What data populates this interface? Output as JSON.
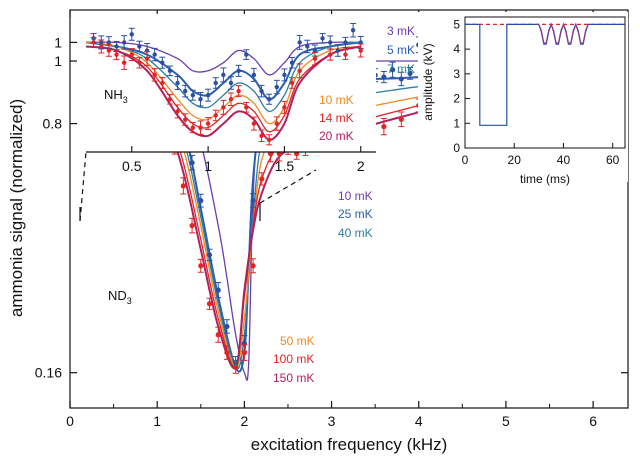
{
  "chart_data": [
    {
      "type": "line",
      "molecule": "ND",
      "molecule_sub": "3",
      "xlabel": "excitation frequency (kHz)",
      "ylabel": "ammonia signal (normalized)",
      "xlim": [
        0,
        6.4
      ],
      "y_scale": "log",
      "ylim": [
        0.13,
        1.35
      ],
      "xticks": [
        0,
        1,
        2,
        3,
        4,
        5,
        6
      ],
      "yticks": [
        0.16,
        1
      ],
      "ytick_labels": [
        "0.16",
        "1"
      ],
      "grid": false,
      "legend_upper": [
        "10 mK",
        "25 mK",
        "40 mK"
      ],
      "legend_lower": [
        "50 mK",
        "100 mK",
        "150 mK"
      ],
      "series": [
        {
          "name": "10 mK",
          "color": "#6a3db0",
          "x": [
            0.3,
            0.5,
            0.7,
            0.9,
            1.1,
            1.3,
            1.5,
            1.7,
            1.8,
            1.9,
            2.0,
            2.05,
            2.1,
            2.2,
            2.4,
            2.7,
            3.0,
            3.5,
            4.0,
            4.5,
            5.0,
            5.5,
            6.0
          ],
          "y": [
            1.0,
            0.98,
            0.96,
            0.98,
            0.95,
            0.85,
            0.62,
            0.38,
            0.28,
            0.2,
            0.16,
            0.17,
            0.45,
            0.92,
            0.99,
            1.0,
            1.0,
            1.0,
            1.0,
            1.0,
            0.99,
            0.99,
            1.0
          ]
        },
        {
          "name": "25 mK",
          "color": "#2a5fb0",
          "x": [
            0.3,
            0.5,
            0.7,
            0.9,
            1.1,
            1.3,
            1.5,
            1.7,
            1.9,
            2.0,
            2.05,
            2.1,
            2.2,
            2.3,
            2.5,
            2.8,
            3.0,
            3.5,
            4.0,
            4.5,
            5.0,
            5.5,
            6.0
          ],
          "y": [
            1.0,
            0.98,
            0.93,
            0.96,
            0.88,
            0.69,
            0.42,
            0.25,
            0.165,
            0.18,
            0.3,
            0.5,
            0.76,
            0.85,
            0.88,
            0.9,
            0.9,
            0.9,
            0.91,
            0.93,
            0.95,
            0.97,
            0.98
          ]
        },
        {
          "name": "40 mK",
          "color": "#2e7ea2",
          "x": [
            0.3,
            0.5,
            0.7,
            0.9,
            1.1,
            1.3,
            1.5,
            1.7,
            1.9,
            2.0,
            2.1,
            2.2,
            2.4,
            2.7,
            3.0,
            3.5,
            4.0,
            4.5,
            5.0,
            5.5,
            6.0
          ],
          "y": [
            1.0,
            0.97,
            0.92,
            0.95,
            0.84,
            0.64,
            0.4,
            0.24,
            0.165,
            0.2,
            0.4,
            0.63,
            0.76,
            0.8,
            0.8,
            0.83,
            0.86,
            0.88,
            0.92,
            0.95,
            0.97
          ]
        },
        {
          "name": "50 mK",
          "color": "#ee8a1e",
          "x": [
            0.3,
            0.5,
            0.7,
            0.9,
            1.1,
            1.3,
            1.5,
            1.7,
            1.9,
            2.0,
            2.1,
            2.2,
            2.4,
            2.7,
            3.0,
            3.5,
            4.0,
            4.5,
            5.0,
            5.5,
            6.0
          ],
          "y": [
            1.0,
            0.96,
            0.9,
            0.93,
            0.8,
            0.6,
            0.38,
            0.23,
            0.165,
            0.22,
            0.38,
            0.56,
            0.68,
            0.72,
            0.73,
            0.77,
            0.81,
            0.85,
            0.89,
            0.92,
            0.95
          ]
        },
        {
          "name": "100 mK",
          "color": "#e02525",
          "x": [
            0.3,
            0.5,
            0.7,
            0.9,
            1.1,
            1.3,
            1.5,
            1.7,
            1.9,
            2.0,
            2.1,
            2.2,
            2.4,
            2.7,
            3.0,
            3.5,
            4.0,
            4.5,
            5.0,
            5.5,
            6.0
          ],
          "y": [
            1.0,
            0.95,
            0.87,
            0.9,
            0.75,
            0.55,
            0.35,
            0.22,
            0.165,
            0.25,
            0.38,
            0.5,
            0.61,
            0.65,
            0.67,
            0.72,
            0.77,
            0.82,
            0.86,
            0.9,
            0.94
          ]
        },
        {
          "name": "150 mK",
          "color": "#b22060",
          "x": [
            0.3,
            0.5,
            0.7,
            0.9,
            1.1,
            1.3,
            1.5,
            1.7,
            1.9,
            2.0,
            2.1,
            2.2,
            2.4,
            2.7,
            3.0,
            3.5,
            4.0,
            4.5,
            5.0,
            5.5,
            6.0
          ],
          "y": [
            1.0,
            0.94,
            0.85,
            0.88,
            0.72,
            0.52,
            0.33,
            0.21,
            0.165,
            0.26,
            0.37,
            0.46,
            0.57,
            0.61,
            0.63,
            0.69,
            0.74,
            0.8,
            0.85,
            0.89,
            0.93
          ]
        },
        {
          "name": "data 10 mK",
          "kind": "points",
          "color": "#2a4fa5",
          "x": [
            0.3,
            0.5,
            0.7,
            0.9,
            1.0,
            1.1,
            1.2,
            1.3,
            1.4,
            1.5,
            1.6,
            1.7,
            1.8,
            1.9,
            2.0,
            2.1,
            2.2,
            2.3,
            2.4,
            2.5,
            2.6,
            2.7,
            2.8,
            2.9,
            3.0,
            3.1,
            3.2,
            3.3,
            3.4,
            3.5,
            3.6,
            3.7,
            3.8,
            3.9,
            4.0,
            4.1,
            4.2,
            4.3,
            4.4,
            4.5,
            4.6,
            4.7,
            4.8,
            4.9,
            5.0,
            5.1,
            5.2,
            5.3,
            5.4,
            5.5,
            5.6,
            5.7,
            5.8,
            5.9,
            6.0
          ],
          "y": [
            1.0,
            1.02,
            1.05,
            1.1,
            0.98,
            0.9,
            0.8,
            0.72,
            0.55,
            0.44,
            0.32,
            0.26,
            0.21,
            0.17,
            0.19,
            0.44,
            0.7,
            0.82,
            0.88,
            0.9,
            0.84,
            0.83,
            0.9,
            0.87,
            0.92,
            0.88,
            0.9,
            0.93,
            0.9,
            0.92,
            0.91,
            0.95,
            0.9,
            0.93,
            1.1,
            0.95,
            0.93,
            0.93,
            0.96,
            0.98,
            0.95,
            0.97,
            0.96,
            0.99,
            0.96,
            0.97,
            0.98,
            0.96,
            0.99,
            0.98,
            0.97,
            0.98,
            0.99,
            1.0,
            1.0
          ]
        },
        {
          "name": "data 150 mK",
          "kind": "points",
          "color": "#e02525",
          "x": [
            0.3,
            0.5,
            0.7,
            0.9,
            1.0,
            1.1,
            1.2,
            1.3,
            1.4,
            1.5,
            1.6,
            1.7,
            1.8,
            1.9,
            2.0,
            2.1,
            2.2,
            2.3,
            2.4,
            2.5,
            2.6,
            2.7,
            2.8,
            2.9,
            3.0,
            3.2,
            3.4,
            3.6,
            3.8,
            4.0,
            4.2,
            4.4,
            4.6,
            4.8,
            5.0,
            5.2,
            5.4,
            5.6,
            5.8,
            6.0
          ],
          "y": [
            0.98,
            0.95,
            0.9,
            0.88,
            0.85,
            0.75,
            0.6,
            0.48,
            0.38,
            0.3,
            0.24,
            0.2,
            0.18,
            0.165,
            0.18,
            0.3,
            0.5,
            0.58,
            0.58,
            0.6,
            0.58,
            0.6,
            0.62,
            0.62,
            0.64,
            0.66,
            0.64,
            0.68,
            0.71,
            0.77,
            0.72,
            0.76,
            0.76,
            0.8,
            0.84,
            0.84,
            0.84,
            0.89,
            0.86,
            0.92
          ]
        }
      ]
    },
    {
      "type": "line",
      "molecule": "NH",
      "molecule_sub": "3",
      "xlim": [
        0.2,
        2.1
      ],
      "ylim": [
        0.73,
        1.07
      ],
      "xticks": [
        0.5,
        1,
        1.5,
        2
      ],
      "xtick_labels": [
        "0.5",
        "1",
        "1.5",
        "2"
      ],
      "yticks": [
        0.8,
        1
      ],
      "ytick_labels": [
        "0.8",
        "1"
      ],
      "legend_upper": [
        "3 mK",
        "5 mK",
        "7 mK"
      ],
      "legend_lower": [
        "10 mK",
        "14 mK",
        "20 mK"
      ],
      "series": [
        {
          "name": "3 mK",
          "color": "#6a3db0",
          "x": [
            0.2,
            0.4,
            0.6,
            0.8,
            0.9,
            1.0,
            1.1,
            1.2,
            1.3,
            1.4,
            1.5,
            1.6,
            1.8,
            2.0
          ],
          "y": [
            1.0,
            1.0,
            0.99,
            0.96,
            0.93,
            0.93,
            0.95,
            0.98,
            0.96,
            0.92,
            0.95,
            0.99,
            1.0,
            1.0
          ]
        },
        {
          "name": "5 mK",
          "color": "#2a5fb0",
          "x": [
            0.2,
            0.4,
            0.6,
            0.8,
            0.9,
            1.0,
            1.1,
            1.2,
            1.3,
            1.4,
            1.5,
            1.6,
            1.8,
            2.0
          ],
          "y": [
            1.0,
            0.99,
            0.97,
            0.92,
            0.88,
            0.87,
            0.9,
            0.93,
            0.91,
            0.86,
            0.9,
            0.97,
            0.99,
            1.0
          ]
        },
        {
          "name": "7 mK",
          "color": "#2e7ea2",
          "x": [
            0.2,
            0.4,
            0.6,
            0.8,
            0.9,
            1.0,
            1.1,
            1.2,
            1.3,
            1.4,
            1.5,
            1.6,
            1.8,
            2.0
          ],
          "y": [
            1.0,
            0.99,
            0.96,
            0.89,
            0.85,
            0.84,
            0.87,
            0.9,
            0.88,
            0.83,
            0.87,
            0.95,
            0.99,
            1.0
          ]
        },
        {
          "name": "10 mK",
          "color": "#ee8a1e",
          "x": [
            0.2,
            0.4,
            0.6,
            0.8,
            0.9,
            1.0,
            1.1,
            1.2,
            1.3,
            1.4,
            1.5,
            1.6,
            1.8,
            2.0
          ],
          "y": [
            1.0,
            0.99,
            0.95,
            0.86,
            0.82,
            0.81,
            0.84,
            0.87,
            0.85,
            0.8,
            0.84,
            0.93,
            0.98,
            0.99
          ]
        },
        {
          "name": "14 mK",
          "color": "#e02525",
          "x": [
            0.2,
            0.4,
            0.6,
            0.8,
            0.9,
            1.0,
            1.1,
            1.2,
            1.3,
            1.4,
            1.5,
            1.6,
            1.8,
            2.0
          ],
          "y": [
            0.99,
            0.98,
            0.94,
            0.84,
            0.8,
            0.79,
            0.82,
            0.85,
            0.83,
            0.78,
            0.82,
            0.91,
            0.97,
            0.99
          ]
        },
        {
          "name": "20 mK",
          "color": "#b22060",
          "x": [
            0.2,
            0.4,
            0.6,
            0.8,
            0.9,
            1.0,
            1.1,
            1.2,
            1.3,
            1.4,
            1.5,
            1.6,
            1.8,
            2.0
          ],
          "y": [
            0.99,
            0.98,
            0.93,
            0.82,
            0.78,
            0.77,
            0.8,
            0.83,
            0.81,
            0.76,
            0.8,
            0.9,
            0.97,
            0.99
          ]
        },
        {
          "name": "data 3 mK",
          "kind": "points",
          "color": "#2a4fa5",
          "x": [
            0.25,
            0.3,
            0.35,
            0.4,
            0.45,
            0.5,
            0.55,
            0.6,
            0.65,
            0.7,
            0.75,
            0.8,
            0.85,
            0.9,
            0.95,
            1.0,
            1.05,
            1.1,
            1.15,
            1.2,
            1.25,
            1.3,
            1.35,
            1.4,
            1.45,
            1.5,
            1.55,
            1.6,
            1.65,
            1.7,
            1.75,
            1.8,
            1.85,
            1.9,
            1.95,
            2.0
          ],
          "y": [
            1.01,
            1.0,
            1.0,
            0.99,
            1.0,
            1.02,
            0.99,
            0.98,
            0.97,
            0.95,
            0.93,
            0.9,
            0.88,
            0.87,
            0.86,
            0.87,
            0.9,
            0.92,
            0.9,
            0.93,
            0.97,
            0.92,
            0.88,
            0.86,
            0.89,
            0.92,
            0.95,
            1.0,
            0.99,
            0.98,
            1.01,
            1.0,
            0.98,
            1.0,
            1.03,
            1.0
          ]
        },
        {
          "name": "data 20 mK",
          "kind": "points",
          "color": "#e02525",
          "x": [
            0.25,
            0.3,
            0.35,
            0.4,
            0.45,
            0.5,
            0.55,
            0.6,
            0.65,
            0.7,
            0.75,
            0.8,
            0.85,
            0.9,
            0.95,
            1.0,
            1.05,
            1.1,
            1.15,
            1.2,
            1.25,
            1.3,
            1.35,
            1.4,
            1.45,
            1.5,
            1.55,
            1.6,
            1.7,
            1.8,
            1.9,
            2.0
          ],
          "y": [
            1.0,
            0.99,
            0.98,
            0.97,
            0.95,
            0.97,
            0.95,
            0.96,
            0.92,
            0.9,
            0.86,
            0.83,
            0.81,
            0.79,
            0.79,
            0.8,
            0.82,
            0.84,
            0.86,
            0.88,
            0.84,
            0.8,
            0.77,
            0.76,
            0.8,
            0.84,
            0.9,
            0.93,
            0.96,
            0.97,
            0.97,
            0.98
          ]
        }
      ]
    },
    {
      "type": "line",
      "xlabel": "time (ms)",
      "ylabel": "amplitude (kV)",
      "xlim": [
        0,
        65
      ],
      "ylim": [
        0,
        5.3
      ],
      "xticks": [
        0,
        20,
        40,
        60
      ],
      "yticks": [
        0,
        1,
        2,
        3,
        4,
        5
      ],
      "series": [
        {
          "name": "dashed",
          "color": "#e02525",
          "dash": true,
          "x": [
            0,
            65
          ],
          "y": [
            5,
            5
          ]
        },
        {
          "name": "waveform",
          "color": "#2a4fa5",
          "x": [
            0,
            6,
            6,
            17,
            17,
            30,
            31,
            32,
            33,
            34,
            35,
            36,
            37,
            38,
            39,
            40,
            41,
            42,
            43,
            44,
            45,
            46,
            47,
            48,
            49,
            50,
            65
          ],
          "y": [
            5,
            5,
            0.92,
            0.92,
            5,
            5,
            4.7,
            4.2,
            4.2,
            4.7,
            5,
            4.7,
            4.2,
            4.2,
            4.7,
            5,
            4.7,
            4.2,
            4.2,
            4.7,
            5,
            4.7,
            4.2,
            4.2,
            4.7,
            5,
            5
          ]
        },
        {
          "name": "waveform2",
          "color": "#8a3a8a",
          "x": [
            30,
            31,
            32,
            33,
            34,
            35,
            36,
            37,
            38,
            39,
            40,
            41,
            42,
            43,
            44,
            45,
            46,
            47,
            48,
            49,
            50
          ],
          "y": [
            5,
            4.75,
            4.25,
            4.25,
            4.75,
            5,
            4.75,
            4.25,
            4.25,
            4.75,
            5,
            4.75,
            4.25,
            4.25,
            4.75,
            5,
            4.75,
            4.25,
            4.25,
            4.75,
            5
          ]
        }
      ]
    }
  ]
}
